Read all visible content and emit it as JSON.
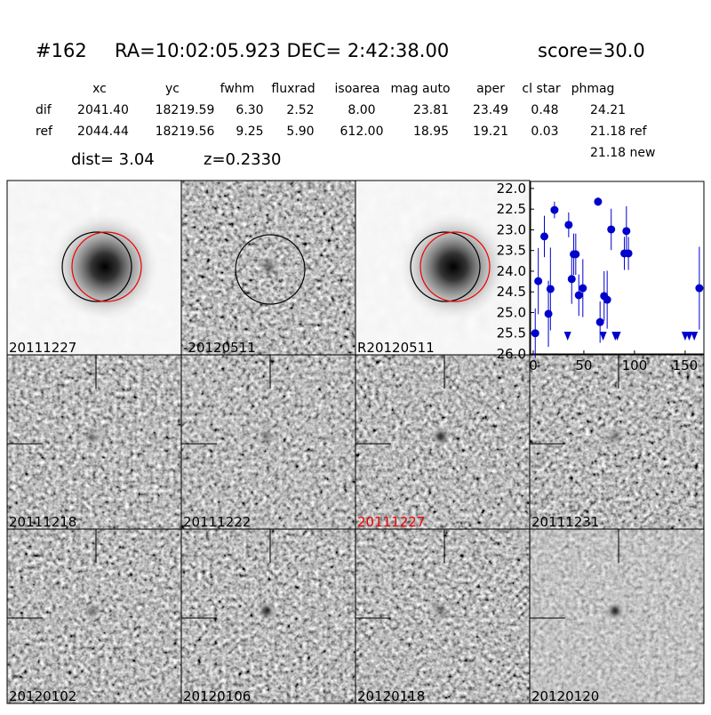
{
  "header": {
    "id": "#162",
    "coords": "RA=10:02:05.923 DEC= 2:42:38.00",
    "score": "score=30.0"
  },
  "table": {
    "columns": [
      "xc",
      "yc",
      "fwhm",
      "fluxrad",
      "isoarea",
      "mag auto",
      "aper",
      "cl star",
      "phmag"
    ],
    "rows": [
      [
        "dif",
        "2041.40",
        "18219.59",
        "6.30",
        "2.52",
        "8.00",
        "23.81",
        "23.49",
        "0.48",
        "24.21"
      ],
      [
        "ref",
        "2044.44",
        "18219.56",
        "9.25",
        "5.90",
        "612.00",
        "18.95",
        "19.21",
        "0.03",
        "21.18 ref"
      ]
    ],
    "extra": "21.18 new"
  },
  "dist": "dist=  3.04",
  "redshift": "z=0.2330",
  "panels": [
    "20111227",
    "-20120511",
    "R20120511",
    "20111218",
    "20111222",
    "20111227",
    "20111231",
    "20120102",
    "20120106",
    "20120118",
    "20120120"
  ],
  "chart_data": {
    "type": "scatter",
    "xlim": [
      -2.6,
      168.5
    ],
    "xticks": [
      0,
      50,
      100,
      150
    ],
    "ylim": [
      26.0,
      21.83
    ],
    "yticks": [
      {
        "value": 22.0,
        "label": "22.0"
      },
      {
        "value": 22.5,
        "label": "22.5"
      },
      {
        "value": 23.0,
        "label": "23.0"
      },
      {
        "value": 23.5,
        "label": "23.5"
      },
      {
        "value": 24.0,
        "label": "24.0"
      },
      {
        "value": 24.5,
        "label": "24.5"
      },
      {
        "value": 25.0,
        "label": "25.0"
      },
      {
        "value": 25.5,
        "label": "25.5"
      },
      {
        "value": 26.0,
        "label": "26.0"
      }
    ],
    "series": [
      {
        "color": "#0000cc",
        "marker": "circle",
        "x": [
          2,
          5,
          11,
          15,
          17,
          21,
          35,
          38,
          40,
          42,
          45,
          49,
          64,
          66,
          70,
          73,
          77,
          90,
          92,
          94,
          164
        ],
        "values": [
          25.5,
          24.24,
          23.16,
          25.03,
          24.43,
          22.52,
          22.88,
          24.19,
          23.59,
          23.59,
          24.58,
          24.41,
          22.32,
          25.23,
          24.6,
          24.69,
          22.99,
          23.57,
          23.03,
          23.57,
          24.41
        ],
        "errors": [
          0.6,
          0.8,
          0.5,
          0.8,
          1.0,
          0.2,
          0.3,
          0.6,
          0.5,
          0.5,
          0.5,
          0.7,
          0.1,
          0.5,
          0.6,
          0.7,
          0.5,
          0.4,
          0.6,
          0.4,
          1.0
        ]
      },
      {
        "color": "#0000cc",
        "marker": "triangle",
        "x": [
          34,
          69,
          81,
          83,
          150,
          154,
          159
        ],
        "values": [
          25.57,
          25.57,
          25.57,
          25.57,
          25.57,
          25.57,
          25.57
        ]
      }
    ]
  }
}
